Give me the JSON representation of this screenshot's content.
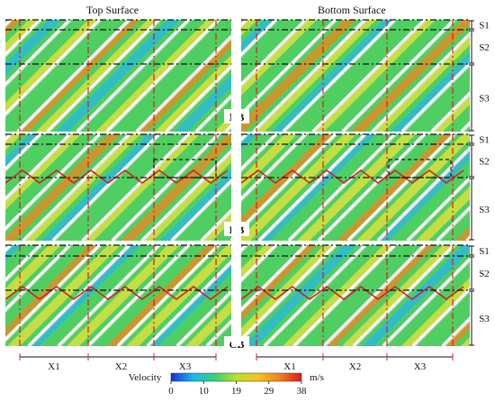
{
  "headers": {
    "top": "Top Surface",
    "bottom": "Bottom Surface"
  },
  "sections": [
    "S1",
    "S2",
    "S3"
  ],
  "panels": [
    "NB",
    "DB",
    "CB"
  ],
  "x_labels": [
    "X1",
    "X2",
    "X3"
  ],
  "colorbar": {
    "title": "Velocity",
    "unit": "m/s",
    "ticks": [
      "0",
      "10",
      "19",
      "29",
      "38"
    ],
    "colors": [
      "#1a2bd6",
      "#19b7f0",
      "#35d27a",
      "#b6e02a",
      "#f6c51c",
      "#f0801c",
      "#e11818"
    ]
  },
  "colors": {
    "field_base": "#4fcf62",
    "field_warm": "#ebe33a",
    "field_hot": "#f0861f",
    "field_cool": "#28b6e8",
    "stripe": "#ffffff",
    "dash_red": "#e11818",
    "dash_black": "#111111"
  }
}
